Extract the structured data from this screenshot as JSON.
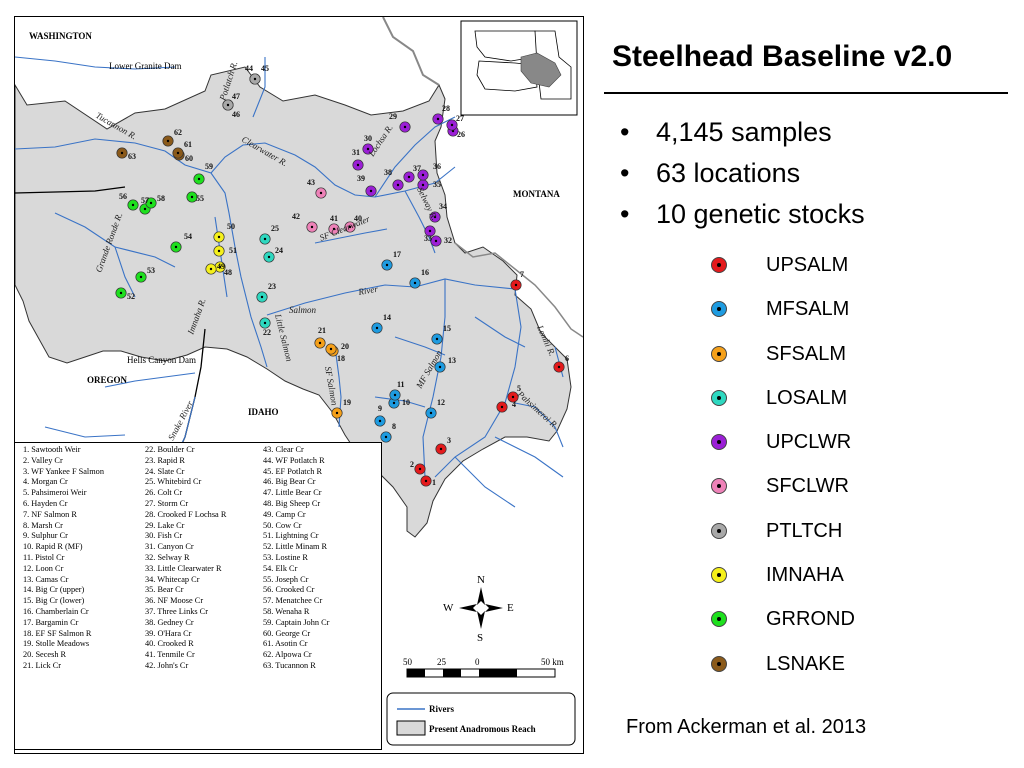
{
  "title": "Steelhead Baseline v2.0",
  "bullets": [
    "4,145 samples",
    "63 locations",
    "10 genetic stocks"
  ],
  "stocks": [
    {
      "name": "UPSALM",
      "color": "#e41a1c"
    },
    {
      "name": "MFSALM",
      "color": "#1e9be0"
    },
    {
      "name": "SFSALM",
      "color": "#f5a01a"
    },
    {
      "name": "LOSALM",
      "color": "#2ed8c0"
    },
    {
      "name": "UPCLWR",
      "color": "#9b1fd6"
    },
    {
      "name": "SFCLWR",
      "color": "#ee82b8"
    },
    {
      "name": "PTLTCH",
      "color": "#a8a8a8"
    },
    {
      "name": "IMNAHA",
      "color": "#f5f01a"
    },
    {
      "name": "GRROND",
      "color": "#1ee01e"
    },
    {
      "name": "LSNAKE",
      "color": "#8b5a1a"
    }
  ],
  "source": "From Ackerman et al. 2013",
  "map": {
    "states": {
      "washington": "WASHINGTON",
      "oregon": "OREGON",
      "idaho": "IDAHO",
      "montana": "MONTANA"
    },
    "dams": {
      "lower_granite": "Lower Granite Dam",
      "hells_canyon": "Hells Canyon Dam"
    },
    "rivers": {
      "tucannon": "Tucannon R.",
      "potlatch": "Potlatch R.",
      "clearwater": "Clearwater R.",
      "lochsa": "Lochsa R.",
      "selway": "Selway R.",
      "sf_clearwater": "SF Clearwater",
      "grande_ronde": "Grande Ronde R.",
      "imnaha": "Imnaha R.",
      "salmon": "Salmon",
      "river": "River",
      "little_salmon": "Little Salmon",
      "sf_salmon": "SF Salmon",
      "mf_salmon": "MF Salmon",
      "snake": "Snake River",
      "lemhi": "Lemhi R.",
      "pahsimeroi": "Pahsimeroi R."
    },
    "key": {
      "rivers": "Rivers",
      "reach": "Present Anadromous Reach"
    },
    "compass": {
      "n": "N",
      "s": "S",
      "e": "E",
      "w": "W"
    },
    "scale": {
      "l50": "50",
      "l25": "25",
      "l0": "0",
      "r50": "50 km"
    }
  },
  "locations": [
    {
      "num": "1",
      "name": "Sawtooth Weir",
      "stock": "UPSALM"
    },
    {
      "num": "2",
      "name": "Valley Cr",
      "stock": "UPSALM"
    },
    {
      "num": "3",
      "name": "WF Yankee F Salmon",
      "stock": "UPSALM"
    },
    {
      "num": "4",
      "name": "Morgan Cr",
      "stock": "UPSALM"
    },
    {
      "num": "5",
      "name": "Pahsimeroi Weir",
      "stock": "UPSALM"
    },
    {
      "num": "6",
      "name": "Hayden Cr",
      "stock": "UPSALM"
    },
    {
      "num": "7",
      "name": "NF Salmon R",
      "stock": "UPSALM"
    },
    {
      "num": "8",
      "name": "Marsh Cr",
      "stock": "MFSALM"
    },
    {
      "num": "9",
      "name": "Sulphur Cr",
      "stock": "MFSALM"
    },
    {
      "num": "10",
      "name": "Rapid R (MF)",
      "stock": "MFSALM"
    },
    {
      "num": "11",
      "name": "Pistol Cr",
      "stock": "MFSALM"
    },
    {
      "num": "12",
      "name": "Loon Cr",
      "stock": "MFSALM"
    },
    {
      "num": "13",
      "name": "Camas Cr",
      "stock": "MFSALM"
    },
    {
      "num": "14",
      "name": "Big Cr (upper)",
      "stock": "MFSALM"
    },
    {
      "num": "15",
      "name": "Big Cr (lower)",
      "stock": "MFSALM"
    },
    {
      "num": "16",
      "name": "Chamberlain Cr",
      "stock": "MFSALM"
    },
    {
      "num": "17",
      "name": "Bargamin Cr",
      "stock": "MFSALM"
    },
    {
      "num": "18",
      "name": "EF SF Salmon R",
      "stock": "SFSALM"
    },
    {
      "num": "19",
      "name": "Stolle Meadows",
      "stock": "SFSALM"
    },
    {
      "num": "20",
      "name": "Secesh R",
      "stock": "SFSALM"
    },
    {
      "num": "21",
      "name": "Lick Cr",
      "stock": "SFSALM"
    },
    {
      "num": "22",
      "name": "Boulder Cr",
      "stock": "LOSALM"
    },
    {
      "num": "23",
      "name": "Rapid R",
      "stock": "LOSALM"
    },
    {
      "num": "24",
      "name": "Slate Cr",
      "stock": "LOSALM"
    },
    {
      "num": "25",
      "name": "Whitebird Cr",
      "stock": "LOSALM"
    },
    {
      "num": "26",
      "name": "Colt Cr",
      "stock": "UPCLWR"
    },
    {
      "num": "27",
      "name": "Storm Cr",
      "stock": "UPCLWR"
    },
    {
      "num": "28",
      "name": "Crooked F Lochsa R",
      "stock": "UPCLWR"
    },
    {
      "num": "29",
      "name": "Lake Cr",
      "stock": "UPCLWR"
    },
    {
      "num": "30",
      "name": "Fish Cr",
      "stock": "UPCLWR"
    },
    {
      "num": "31",
      "name": "Canyon Cr",
      "stock": "UPCLWR"
    },
    {
      "num": "32",
      "name": "Selway R",
      "stock": "UPCLWR"
    },
    {
      "num": "33",
      "name": "Little Clearwater R",
      "stock": "UPCLWR"
    },
    {
      "num": "34",
      "name": "Whitecap Cr",
      "stock": "UPCLWR"
    },
    {
      "num": "35",
      "name": "Bear Cr",
      "stock": "UPCLWR"
    },
    {
      "num": "36",
      "name": "NF Moose Cr",
      "stock": "UPCLWR"
    },
    {
      "num": "37",
      "name": "Three Links Cr",
      "stock": "UPCLWR"
    },
    {
      "num": "38",
      "name": "Gedney Cr",
      "stock": "UPCLWR"
    },
    {
      "num": "39",
      "name": "O'Hara Cr",
      "stock": "UPCLWR"
    },
    {
      "num": "40",
      "name": "Crooked R",
      "stock": "SFCLWR"
    },
    {
      "num": "41",
      "name": "Tenmile Cr",
      "stock": "SFCLWR"
    },
    {
      "num": "42",
      "name": "John's Cr",
      "stock": "SFCLWR"
    },
    {
      "num": "43",
      "name": "Clear Cr",
      "stock": "SFCLWR"
    },
    {
      "num": "44",
      "name": "WF Potlatch R",
      "stock": "PTLTCH"
    },
    {
      "num": "45",
      "name": "EF Potlatch R",
      "stock": "PTLTCH"
    },
    {
      "num": "46",
      "name": "Big Bear Cr",
      "stock": "PTLTCH"
    },
    {
      "num": "47",
      "name": "Little Bear Cr",
      "stock": "PTLTCH"
    },
    {
      "num": "48",
      "name": "Big Sheep Cr",
      "stock": "IMNAHA"
    },
    {
      "num": "49",
      "name": "Camp Cr",
      "stock": "IMNAHA"
    },
    {
      "num": "50",
      "name": "Cow Cr",
      "stock": "IMNAHA"
    },
    {
      "num": "51",
      "name": "Lightning Cr",
      "stock": "IMNAHA"
    },
    {
      "num": "52",
      "name": "Little Minam R",
      "stock": "GRROND"
    },
    {
      "num": "53",
      "name": "Lostine R",
      "stock": "GRROND"
    },
    {
      "num": "54",
      "name": "Elk Cr",
      "stock": "GRROND"
    },
    {
      "num": "55",
      "name": "Joseph Cr",
      "stock": "GRROND"
    },
    {
      "num": "56",
      "name": "Crooked Cr",
      "stock": "GRROND"
    },
    {
      "num": "57",
      "name": "Menatchee Cr",
      "stock": "GRROND"
    },
    {
      "num": "58",
      "name": "Wenaha R",
      "stock": "GRROND"
    },
    {
      "num": "59",
      "name": "Captain John Cr",
      "stock": "GRROND"
    },
    {
      "num": "60",
      "name": "George Cr",
      "stock": "LSNAKE"
    },
    {
      "num": "61",
      "name": "Asotin Cr",
      "stock": "LSNAKE"
    },
    {
      "num": "62",
      "name": "Alpowa Cr",
      "stock": "LSNAKE"
    },
    {
      "num": "63",
      "name": "Tucannon R",
      "stock": "LSNAKE"
    }
  ]
}
